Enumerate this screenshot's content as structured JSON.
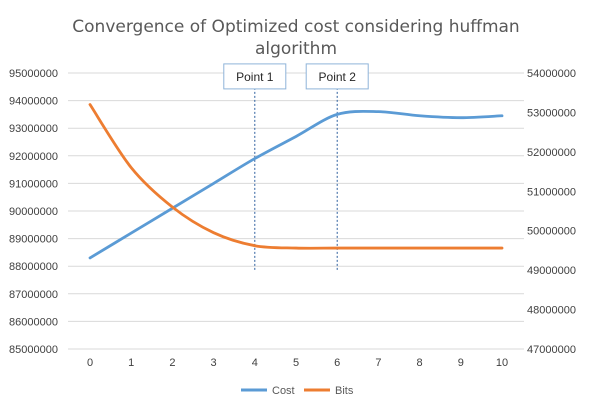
{
  "chart_data": {
    "type": "line",
    "title_line1": "Convergence of Optimized cost considering huffman",
    "title_line2": "algorithm",
    "x": [
      0,
      1,
      2,
      3,
      4,
      5,
      6,
      7,
      8,
      9,
      10
    ],
    "x_tick_labels": [
      "0",
      "1",
      "2",
      "3",
      "4",
      "5",
      "6",
      "7",
      "8",
      "9",
      "10"
    ],
    "ylim_left": [
      85000000,
      95000000
    ],
    "ylim_right": [
      47000000,
      54000000
    ],
    "left_tick_labels": [
      "95000000",
      "94000000",
      "93000000",
      "92000000",
      "91000000",
      "90000000",
      "89000000",
      "88000000",
      "87000000",
      "86000000",
      "85000000"
    ],
    "left_tick_values": [
      95000000,
      94000000,
      93000000,
      92000000,
      91000000,
      90000000,
      89000000,
      88000000,
      87000000,
      86000000,
      85000000
    ],
    "right_tick_labels": [
      "54000000",
      "53000000",
      "52000000",
      "51000000",
      "50000000",
      "49000000",
      "48000000",
      "47000000"
    ],
    "right_tick_values": [
      54000000,
      53000000,
      52000000,
      51000000,
      50000000,
      49000000,
      48000000,
      47000000
    ],
    "grid": true,
    "legend_position": "bottom",
    "series": [
      {
        "name": "Cost",
        "axis": "left",
        "color": "#5b9bd5",
        "values": [
          88300000,
          89200000,
          90100000,
          91000000,
          91900000,
          92700000,
          93500000,
          93600000,
          93450000,
          93380000,
          93450000
        ]
      },
      {
        "name": "Bits",
        "axis": "right",
        "color": "#ed7d31",
        "values": [
          53200000,
          51600000,
          50600000,
          49950000,
          49620000,
          49560000,
          49560000,
          49560000,
          49560000,
          49560000,
          49560000
        ]
      }
    ],
    "annotations": [
      {
        "label": "Point 1",
        "x": 4,
        "y_from": 87800000,
        "y_to": 94750000
      },
      {
        "label": "Point 2",
        "x": 6,
        "y_from": 87800000,
        "y_to": 94750000
      }
    ]
  },
  "colors": {
    "grid": "#d9d9d9",
    "annotation_line": "#2e5f9e",
    "annotation_box_border": "#8fb4d9"
  }
}
